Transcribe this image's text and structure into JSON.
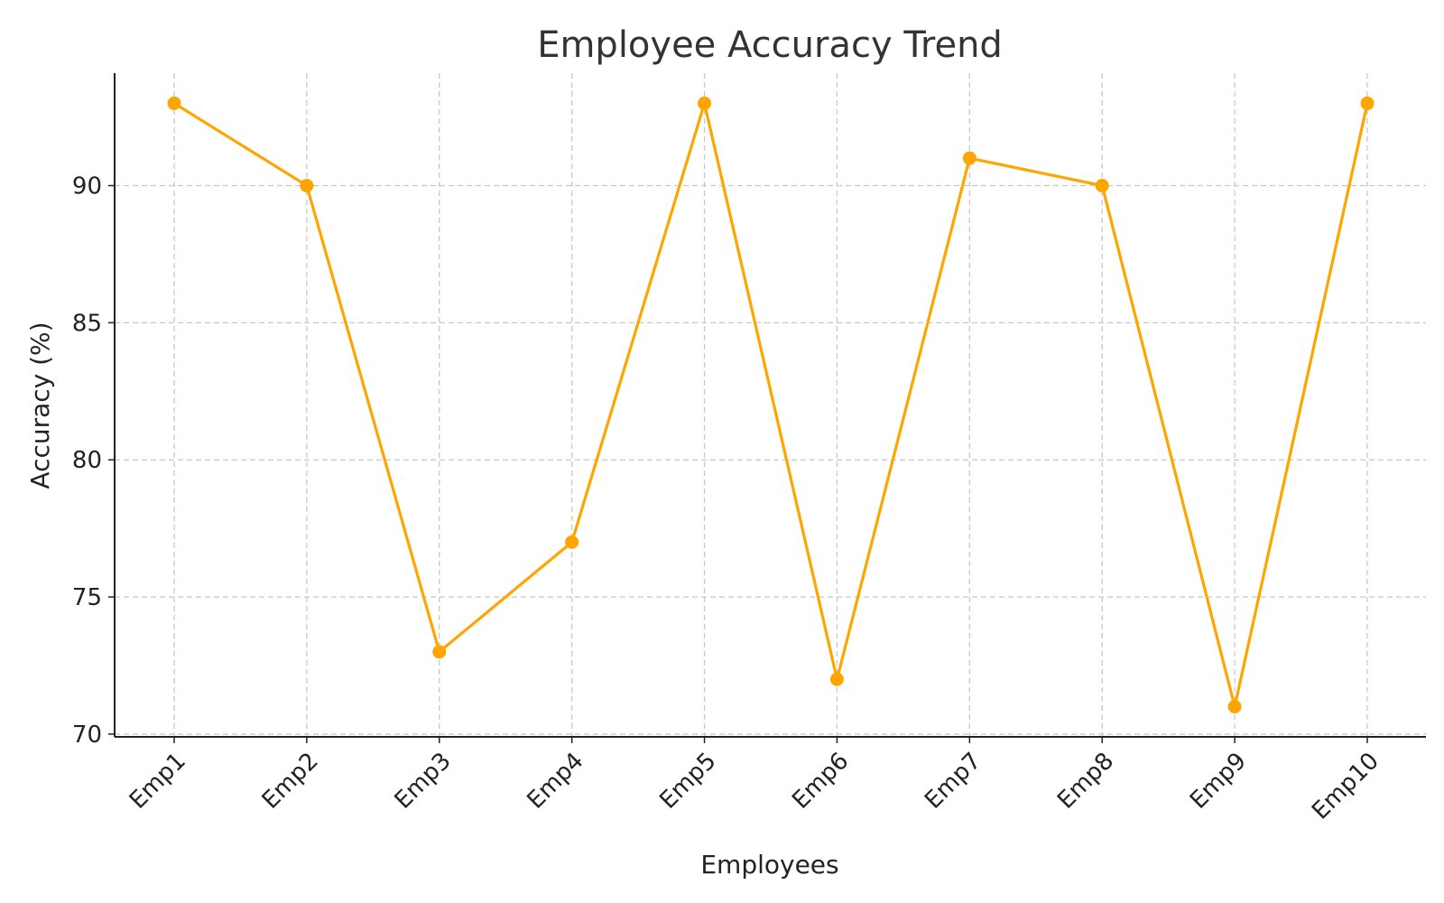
{
  "chart_data": {
    "type": "line",
    "title": "Employee Accuracy Trend",
    "xlabel": "Employees",
    "ylabel": "Accuracy (%)",
    "categories": [
      "Emp1",
      "Emp2",
      "Emp3",
      "Emp4",
      "Emp5",
      "Emp6",
      "Emp7",
      "Emp8",
      "Emp9",
      "Emp10"
    ],
    "series": [
      {
        "values": [
          93,
          90,
          73,
          77,
          93,
          72,
          91,
          90,
          71,
          93
        ],
        "color": "#FFA500"
      }
    ],
    "ylim": [
      69.9,
      94.1
    ],
    "yticks": [
      70,
      75,
      80,
      85,
      90
    ],
    "grid": true,
    "marker": "circle"
  }
}
